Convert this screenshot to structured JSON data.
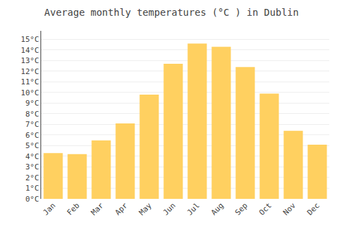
{
  "chart_data": {
    "type": "bar",
    "title": "Average monthly temperatures (°C ) in Dublin",
    "categories": [
      "Jan",
      "Feb",
      "Mar",
      "Apr",
      "May",
      "Jun",
      "Jul",
      "Aug",
      "Sep",
      "Oct",
      "Nov",
      "Dec"
    ],
    "values": [
      4.3,
      4.2,
      5.5,
      7.1,
      9.8,
      12.7,
      14.6,
      14.3,
      12.4,
      9.9,
      6.4,
      5.1
    ],
    "color": "#FFD060",
    "ylim": [
      0,
      15.8
    ],
    "yticks": [
      {
        "value": 0,
        "label": "0°C"
      },
      {
        "value": 1,
        "label": "1°C"
      },
      {
        "value": 2,
        "label": "2°C"
      },
      {
        "value": 3,
        "label": "3°C"
      },
      {
        "value": 4,
        "label": "4°C"
      },
      {
        "value": 5,
        "label": "5°C"
      },
      {
        "value": 6,
        "label": "6°C"
      },
      {
        "value": 7,
        "label": "7°C"
      },
      {
        "value": 8,
        "label": "8°C"
      },
      {
        "value": 9,
        "label": "9°C"
      },
      {
        "value": 10,
        "label": "10°C"
      },
      {
        "value": 11,
        "label": "11°C"
      },
      {
        "value": 12,
        "label": "12°C"
      },
      {
        "value": 13,
        "label": "13°C"
      },
      {
        "value": 14,
        "label": "14°C"
      },
      {
        "value": 15,
        "label": "15°C"
      }
    ],
    "grid": true
  }
}
